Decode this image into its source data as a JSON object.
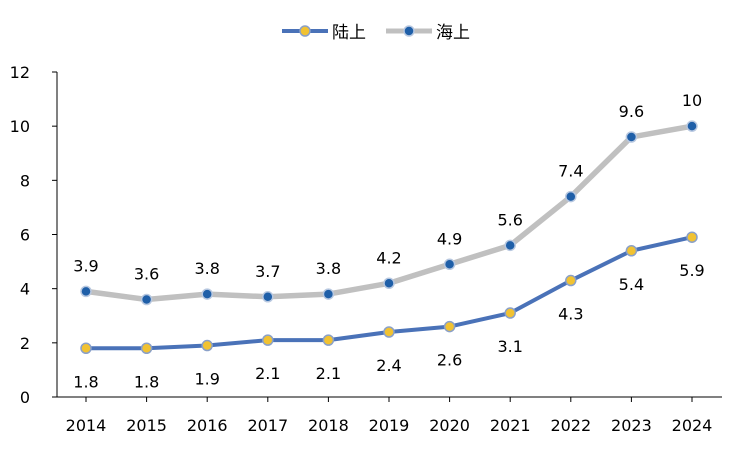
{
  "chart_data": {
    "type": "line",
    "title": "",
    "xlabel": "",
    "ylabel": "",
    "categories": [
      "2014",
      "2015",
      "2016",
      "2017",
      "2018",
      "2019",
      "2020",
      "2021",
      "2022",
      "2023",
      "2024"
    ],
    "ylim": [
      0,
      12
    ],
    "yticks": [
      0,
      2,
      4,
      6,
      8,
      10,
      12
    ],
    "grid": false,
    "legend_position": "top-center",
    "series": [
      {
        "name": "陆上",
        "values": [
          1.8,
          1.8,
          1.9,
          2.1,
          2.1,
          2.4,
          2.6,
          3.1,
          4.3,
          5.4,
          5.9
        ],
        "line_color": "#4a72b8",
        "marker_fill": "#f1c232",
        "label_position": "below"
      },
      {
        "name": "海上",
        "values": [
          3.9,
          3.6,
          3.8,
          3.7,
          3.8,
          4.2,
          4.9,
          5.6,
          7.4,
          9.6,
          10
        ],
        "line_color": "#c0c0c0",
        "marker_fill": "#1f5fa8",
        "label_position": "above"
      }
    ]
  }
}
